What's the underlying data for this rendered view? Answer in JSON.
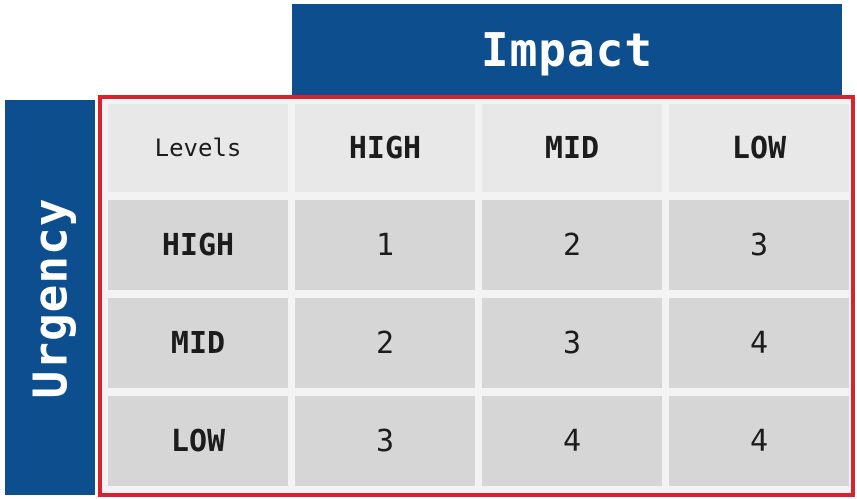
{
  "header": {
    "impact_label": "Impact",
    "urgency_label": "Urgency"
  },
  "matrix": {
    "corner_label": "Levels",
    "impact_columns": [
      "HIGH",
      "MID",
      "LOW"
    ],
    "rows": [
      {
        "urgency": "HIGH",
        "values": [
          "1",
          "2",
          "3"
        ]
      },
      {
        "urgency": "MID",
        "values": [
          "2",
          "3",
          "4"
        ]
      },
      {
        "urgency": "LOW",
        "values": [
          "3",
          "4",
          "4"
        ]
      }
    ]
  },
  "colors": {
    "header_bg": "#0d4f8e",
    "header_text": "#ffffff",
    "border": "#d8232f",
    "top_cell_bg": "#e8e8e8",
    "body_cell_bg": "#d6d6d6"
  }
}
